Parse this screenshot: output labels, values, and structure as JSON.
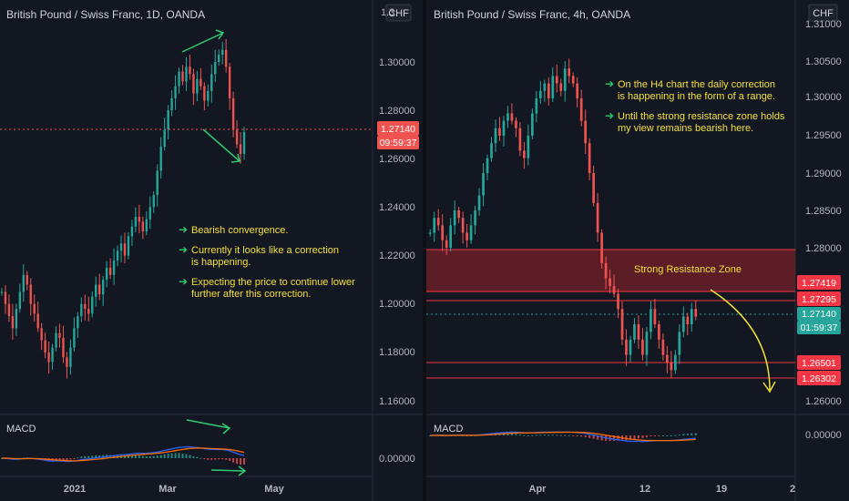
{
  "colors": {
    "background": "#131722",
    "up": "#26a69a",
    "down": "#ef5350",
    "macd_line": "#2962ff",
    "signal_line": "#ff6d00",
    "annotation_text": "#f2e03c",
    "annotation_arrow": "#2ecc71",
    "zone_fill": "#6b1e28",
    "level_line": "#f23645",
    "price_line": "#26a69a"
  },
  "chart_data": [
    {
      "type": "candlestick",
      "title": "British Pound / Swiss Franc, 1D, OANDA",
      "currency": "CHF",
      "y_ticks": [
        "1.30000",
        "1.28000",
        "1.26000",
        "1.24000",
        "1.22000",
        "1.20000",
        "1.18000",
        "1.16000"
      ],
      "y_ticks_partial_top": "1.3",
      "ylim": [
        1.155,
        1.324
      ],
      "x_ticks": [
        "2021",
        "Mar",
        "May"
      ],
      "last_price": "1.27140",
      "countdown": "09:59:37",
      "annotations": [
        {
          "bullet": "➔",
          "text": [
            "Bearish convergence."
          ]
        },
        {
          "bullet": "➔",
          "text": [
            "Currently it looks like a correction",
            "is happening."
          ]
        },
        {
          "bullet": "➔",
          "text": [
            "Expecting the price to continue lower",
            "further after this correction."
          ]
        }
      ],
      "macd": {
        "label": "MACD",
        "y_ticks": [
          "0.00000"
        ]
      },
      "series_close": [
        1.205,
        1.2,
        1.195,
        1.19,
        1.198,
        1.205,
        1.212,
        1.208,
        1.2,
        1.196,
        1.19,
        1.185,
        1.18,
        1.176,
        1.182,
        1.188,
        1.186,
        1.178,
        1.174,
        1.182,
        1.19,
        1.195,
        1.2,
        1.198,
        1.196,
        1.203,
        1.208,
        1.204,
        1.21,
        1.215,
        1.212,
        1.218,
        1.222,
        1.225,
        1.22,
        1.228,
        1.232,
        1.236,
        1.234,
        1.23,
        1.235,
        1.24,
        1.245,
        1.255,
        1.265,
        1.272,
        1.28,
        1.285,
        1.29,
        1.296,
        1.292,
        1.298,
        1.295,
        1.287,
        1.293,
        1.29,
        1.284,
        1.288,
        1.295,
        1.3,
        1.303,
        1.305,
        1.298,
        1.285,
        1.272,
        1.266,
        1.262,
        1.271
      ]
    },
    {
      "type": "candlestick",
      "title": "British Pound / Swiss Franc, 4h, OANDA",
      "currency": "CHF",
      "y_ticks": [
        "1.30500",
        "1.30000",
        "1.29500",
        "1.29000",
        "1.28500",
        "1.28000",
        "1.26000"
      ],
      "y_ticks_partial_top": "1.31000",
      "price_labels": [
        "1.27419",
        "1.27295",
        "1.27140",
        "1.26501",
        "1.26302"
      ],
      "last_price": "1.27140",
      "countdown": "01:59:37",
      "strong_resistance_zone": {
        "label": "Strong Resistance Zone",
        "from": 1.273,
        "to": 1.278
      },
      "levels": [
        1.27419,
        1.27295,
        1.26501,
        1.26302
      ],
      "x_ticks": [
        "Apr",
        "12",
        "19",
        "2"
      ],
      "annotations": [
        {
          "bullet": "➔",
          "text": [
            "On the H4 chart the daily correction",
            "is happening in the form of a range."
          ]
        },
        {
          "bullet": "➔",
          "text": [
            "Until the strong resistance zone holds",
            "my view remains bearish here."
          ]
        }
      ],
      "macd": {
        "label": "MACD",
        "y_ticks": [
          "0.00000"
        ]
      },
      "series_close": [
        1.282,
        1.284,
        1.283,
        1.281,
        1.28,
        1.283,
        1.285,
        1.284,
        1.282,
        1.281,
        1.283,
        1.285,
        1.287,
        1.29,
        1.292,
        1.294,
        1.296,
        1.295,
        1.297,
        1.298,
        1.297,
        1.296,
        1.293,
        1.292,
        1.295,
        1.298,
        1.3,
        1.301,
        1.302,
        1.3,
        1.303,
        1.302,
        1.301,
        1.304,
        1.303,
        1.302,
        1.3,
        1.297,
        1.294,
        1.29,
        1.286,
        1.282,
        1.278,
        1.276,
        1.275,
        1.274,
        1.272,
        1.268,
        1.266,
        1.268,
        1.27,
        1.268,
        1.266,
        1.269,
        1.272,
        1.27,
        1.268,
        1.266,
        1.265,
        1.264,
        1.266,
        1.269,
        1.271,
        1.27,
        1.272,
        1.271
      ]
    }
  ]
}
